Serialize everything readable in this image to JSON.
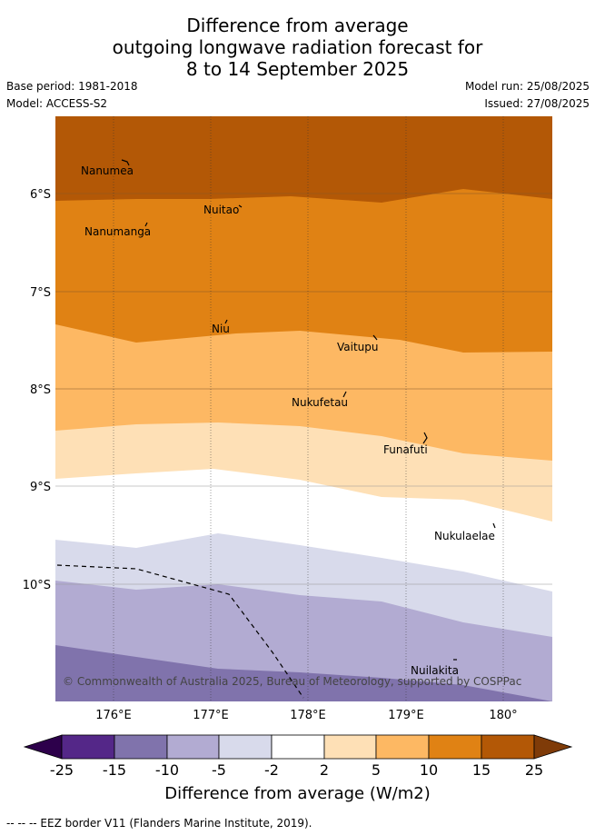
{
  "header": {
    "title_lines": [
      "Difference from average",
      "outgoing longwave radiation forecast for",
      "8 to 14 September 2025"
    ],
    "base_period": "Base period: 1981-2018",
    "model": "Model: ACCESS-S2",
    "model_run": "Model run: 25/08/2025",
    "issued": "Issued: 27/08/2025"
  },
  "map": {
    "lon_ticks": [
      "176°E",
      "177°E",
      "178°E",
      "179°E",
      "180°"
    ],
    "lat_ticks": [
      "6°S",
      "7°S",
      "8°S",
      "9°S",
      "10°S"
    ],
    "places": [
      {
        "name": "Nanumea"
      },
      {
        "name": "Nuitao"
      },
      {
        "name": "Nanumanga"
      },
      {
        "name": "Niu"
      },
      {
        "name": "Vaitupu"
      },
      {
        "name": "Nukufetau"
      },
      {
        "name": "Funafuti"
      },
      {
        "name": "Nukulaelae"
      },
      {
        "name": "Nuilakita"
      }
    ],
    "copyright": "© Commonwealth of Australia 2025, Bureau of Meteorology, supported by COSPPac",
    "band_colors": {
      "gt15": "#b35806",
      "10to15": "#e08214",
      "5to10": "#fdb863",
      "2to5": "#fee0b6",
      "m2to2": "#ffffff",
      "m5tom2": "#d8daeb",
      "m10tom5": "#b2abd2",
      "m15tom10": "#8073ac"
    }
  },
  "colorbar": {
    "labels": [
      "-25",
      "-15",
      "-10",
      "-5",
      "-2",
      "2",
      "5",
      "10",
      "15",
      "25"
    ],
    "colors": [
      "#2d004b",
      "#542788",
      "#8073ac",
      "#b2abd2",
      "#d8daeb",
      "#ffffff",
      "#fee0b6",
      "#fdb863",
      "#e08214",
      "#b35806",
      "#7f3b08"
    ],
    "title": "Difference from average (W/m2)"
  },
  "footnote": "--  --  -- EEZ border V11 (Flanders Marine Institute, 2019)."
}
